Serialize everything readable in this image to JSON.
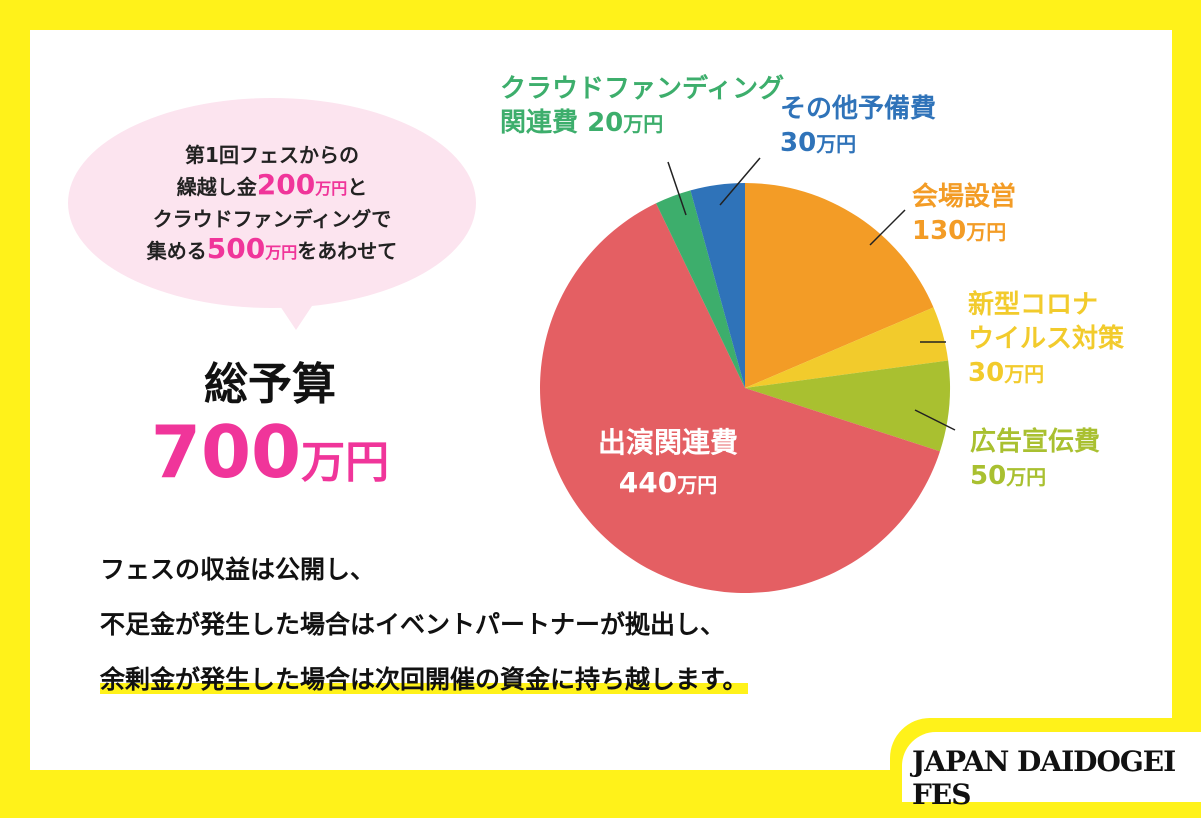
{
  "bubble": {
    "line1": "第1回フェスからの",
    "line2_pre": "繰越し金",
    "line2_num": "200",
    "line2_unit": "万円",
    "line2_post": "と",
    "line3": "クラウドファンディングで",
    "line4_pre": "集める",
    "line4_num": "500",
    "line4_unit": "万円",
    "line4_post": "をあわせて"
  },
  "total": {
    "label": "総予算",
    "value": "700",
    "unit": "万円"
  },
  "notes": [
    "フェスの収益は公開し、",
    "不足金が発生した場合はイベントパートナーが拠出し、",
    "余剰金が発生した場合は次回開催の資金に持ち越します。"
  ],
  "logo": "JAPAN DAIDOGEI FES",
  "chart_data": {
    "type": "pie",
    "unit": "万円",
    "start": "12 o'clock",
    "direction": "clockwise",
    "slices": [
      {
        "name": "会場設営",
        "value": 130,
        "label": "130",
        "color": "#F39C26"
      },
      {
        "name": "新型コロナウイルス対策",
        "name_l1": "新型コロナ",
        "name_l2": "ウイルス対策",
        "value": 30,
        "label": "30",
        "color": "#F2CB2C"
      },
      {
        "name": "広告宣伝費",
        "value": 50,
        "label": "50",
        "color": "#A9C030"
      },
      {
        "name": "出演関連費",
        "value": 440,
        "label": "440",
        "color": "#E45F63"
      },
      {
        "name": "クラウドファンディング関連費",
        "name_l1": "クラウドファンディング",
        "name_l2": "関連費",
        "value": 20,
        "label": "20",
        "color": "#3DAE6C"
      },
      {
        "name": "その他予備費",
        "value": 30,
        "label": "30",
        "color": "#2F73B9"
      }
    ]
  }
}
